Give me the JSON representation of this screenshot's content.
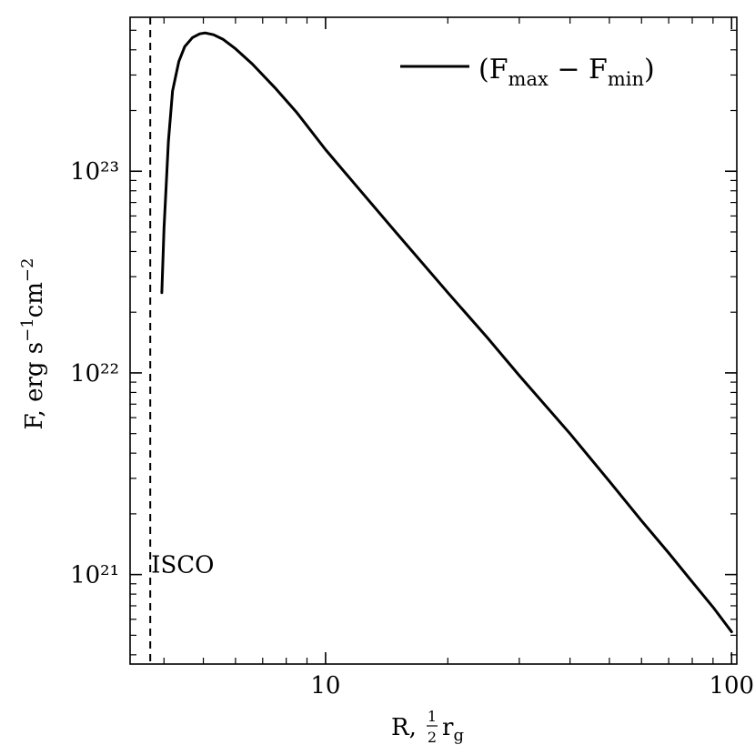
{
  "chart_data": {
    "type": "line",
    "x_scale": "log",
    "y_scale": "log",
    "xlim": [
      3.3,
      103
    ],
    "ylim": [
      3.6e+20,
      5.8e+23
    ],
    "xlabel": "R, ½r_g",
    "ylabel": "F, erg s⁻¹cm⁻²",
    "x_ticks": [
      {
        "value": 10,
        "label": "10"
      },
      {
        "value": 100,
        "label": "100"
      }
    ],
    "y_ticks": [
      {
        "value": 1e+21,
        "label": "10²¹"
      },
      {
        "value": 1e+22,
        "label": "10²²"
      },
      {
        "value": 1e+23,
        "label": "10²³"
      }
    ],
    "grid": false,
    "legend": {
      "placement": "top-right"
    },
    "series": [
      {
        "name": "(F_max − F_min)",
        "color": "#000000",
        "style": "solid",
        "x": [
          3.95,
          4.0,
          4.05,
          4.1,
          4.2,
          4.35,
          4.5,
          4.7,
          4.9,
          5.05,
          5.3,
          5.6,
          6.0,
          6.6,
          7.5,
          8.5,
          10,
          12,
          15,
          20,
          25,
          30,
          40,
          50,
          60,
          70,
          80,
          90,
          100
        ],
        "y": [
          2.5e+22,
          5.2e+22,
          8.5e+22,
          1.4e+23,
          2.5e+23,
          3.5e+23,
          4.15e+23,
          4.6e+23,
          4.8e+23,
          4.85e+23,
          4.75e+23,
          4.5e+23,
          4.05e+23,
          3.4e+23,
          2.6e+23,
          1.95e+23,
          1.28e+23,
          8.3e+22,
          4.9e+22,
          2.5e+22,
          1.5e+22,
          9.7e+21,
          5e+21,
          2.9e+21,
          1.85e+21,
          1.28e+21,
          9.2e+20,
          6.9e+20,
          5.2e+20
        ]
      }
    ],
    "reference_lines": [
      {
        "orientation": "vertical",
        "x": 3.7,
        "style": "dashed",
        "label": "ISCO"
      }
    ]
  }
}
